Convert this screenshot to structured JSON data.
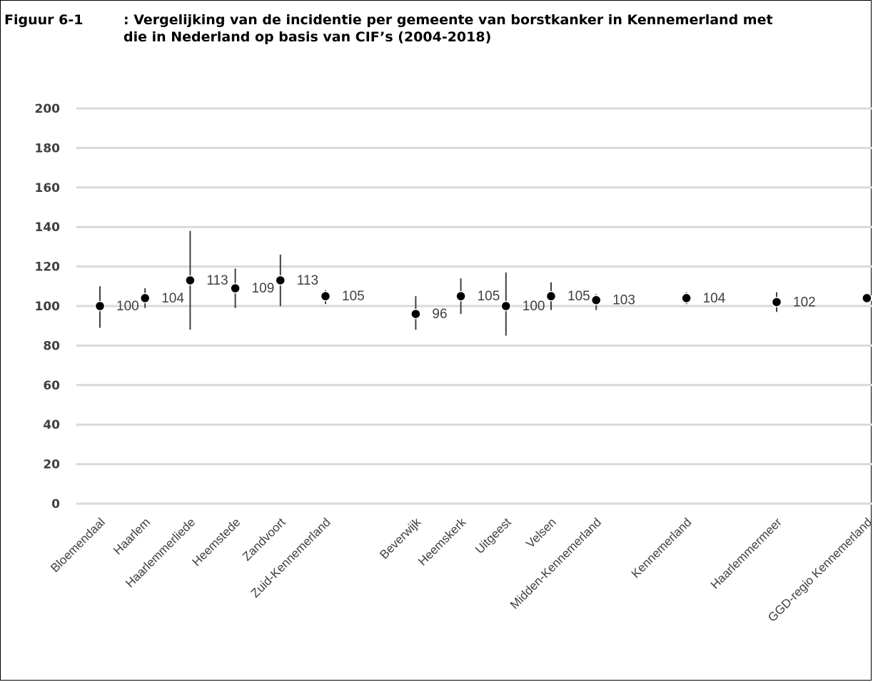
{
  "figure": {
    "label": "Figuur 6-1",
    "title_line1": ": Vergelijking van de incidentie per gemeente van borstkanker in Kennemerland met",
    "title_line2": "die in Nederland op basis van CIF’s (2004-2018)"
  },
  "chart_data": {
    "type": "scatter",
    "title": "Figuur 6-1 : Vergelijking van de incidentie per gemeente van borstkanker in Kennemerland met die in Nederland op basis van CIF’s (2004-2018)",
    "xlabel": "",
    "ylabel": "",
    "ylim": [
      0,
      200
    ],
    "yticks": [
      0,
      20,
      40,
      60,
      80,
      100,
      120,
      140,
      160,
      180,
      200
    ],
    "grid": true,
    "categories": [
      "Bloemendaal",
      "Haarlem",
      "Haarlemmerliede",
      "Heemstede",
      "Zandvoort",
      "Zuid-Kennemerland",
      "",
      "Beverwijk",
      "Heemskerk",
      "Uitgeest",
      "Velsen",
      "Midden-Kennemerland",
      "",
      "Kennemerland",
      "",
      "Haarlemmermeer",
      "",
      "GGD-regio Kennemerland"
    ],
    "series": [
      {
        "values": [
          100,
          104,
          113,
          109,
          113,
          105,
          null,
          96,
          105,
          100,
          105,
          103,
          null,
          104,
          null,
          102,
          null,
          104
        ],
        "error_low": [
          89,
          99,
          88,
          99,
          100,
          101,
          null,
          88,
          96,
          85,
          98,
          98,
          null,
          101,
          null,
          97,
          null,
          102
        ],
        "error_high": [
          110,
          109,
          138,
          119,
          126,
          108,
          null,
          105,
          114,
          117,
          112,
          106,
          null,
          107,
          null,
          107,
          null,
          106
        ],
        "labels": [
          "100",
          "104",
          "113",
          "109",
          "113",
          "105",
          "",
          "96",
          "105",
          "100",
          "105",
          "103",
          "",
          "104",
          "",
          "102",
          "",
          ""
        ]
      }
    ],
    "colors": {
      "marker": "#000000",
      "error_bar": "#404040",
      "grid": "#d9d9d9",
      "text": "#404040"
    }
  }
}
